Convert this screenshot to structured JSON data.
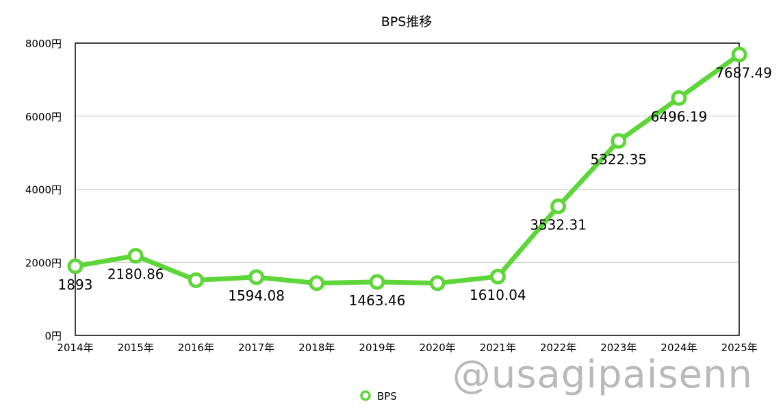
{
  "chart_data": {
    "type": "line",
    "title": "BPS推移",
    "categories": [
      "2014年",
      "2015年",
      "2016年",
      "2017年",
      "2018年",
      "2019年",
      "2020年",
      "2021年",
      "2022年",
      "2023年",
      "2024年",
      "2025年"
    ],
    "series": [
      {
        "name": "BPS",
        "color": "#5ed63a",
        "values": [
          1893,
          2180.86,
          1510,
          1594.08,
          1430,
          1463.46,
          1430,
          1610.04,
          3532.31,
          5322.35,
          6496.19,
          7687.49
        ],
        "labels": [
          "1893",
          "2180.86",
          "",
          "1594.08",
          "",
          "1463.46",
          "",
          "1610.04",
          "3532.31",
          "5322.35",
          "6496.19",
          "7687.49"
        ]
      }
    ],
    "yticks": [
      "0円",
      "2000円",
      "4000円",
      "6000円",
      "8000円"
    ],
    "ylim": [
      0,
      8000
    ],
    "grid": true,
    "legend": "bottom"
  },
  "watermark": "@usagipaisenn"
}
